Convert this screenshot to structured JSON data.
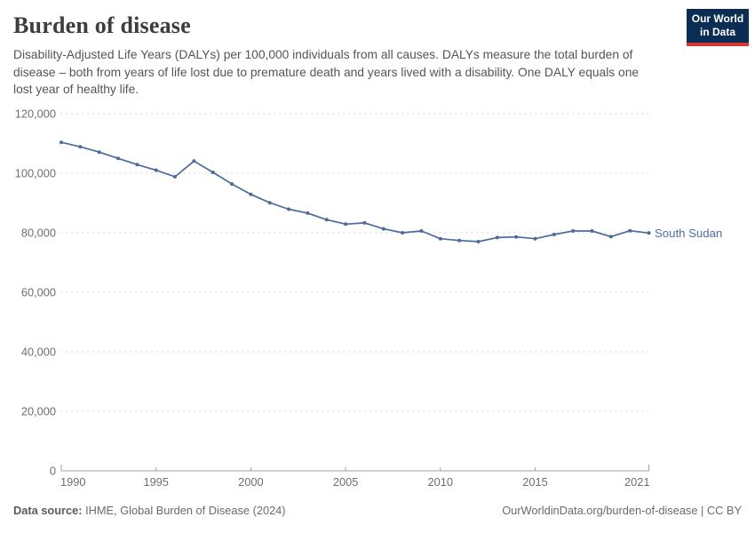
{
  "header": {
    "title": "Burden of disease",
    "subtitle": "Disability-Adjusted Life Years (DALYs) per 100,000 individuals from all causes. DALYs measure the total burden of disease – both from years of life lost due to premature death and years lived with a disability. One DALY equals one lost year of healthy life.",
    "logo": {
      "line1": "Our World",
      "line2": "in Data",
      "bg_color": "#0c2d53",
      "accent_color": "#d83731"
    }
  },
  "chart_data": {
    "type": "line",
    "title": "Burden of disease",
    "xlabel": "",
    "ylabel": "DALYs per 100,000 individuals",
    "x": [
      1990,
      1991,
      1992,
      1993,
      1994,
      1995,
      1996,
      1997,
      1998,
      1999,
      2000,
      2001,
      2002,
      2003,
      2004,
      2005,
      2006,
      2007,
      2008,
      2009,
      2010,
      2011,
      2012,
      2013,
      2014,
      2015,
      2016,
      2017,
      2018,
      2019,
      2020,
      2021
    ],
    "series": [
      {
        "name": "South Sudan",
        "color": "#4c6a9c",
        "label_color": "#4d6ea7",
        "values": [
          110400,
          108900,
          107100,
          105000,
          102900,
          101000,
          98800,
          104100,
          100300,
          96400,
          92900,
          90100,
          87900,
          86600,
          84400,
          82900,
          83300,
          81300,
          80000,
          80600,
          78000,
          77400,
          77000,
          78400,
          78600,
          78000,
          79400,
          80600,
          80600,
          78700,
          80700,
          79900
        ]
      }
    ],
    "ylim": [
      0,
      120000
    ],
    "yticks": [
      0,
      20000,
      40000,
      60000,
      80000,
      100000,
      120000
    ],
    "xticks": [
      1990,
      1995,
      2000,
      2005,
      2010,
      2015,
      2021
    ],
    "grid": "horizontal-dashed",
    "grid_color": "#dcdcdc",
    "axis_color": "#a3a3a3",
    "tick_label_color": "#6e6e6e",
    "legend_position": "end-of-line"
  },
  "footer": {
    "source_label": "Data source:",
    "source_value": " IHME, Global Burden of Disease (2024)",
    "credit": "OurWorldinData.org/burden-of-disease | CC BY"
  }
}
